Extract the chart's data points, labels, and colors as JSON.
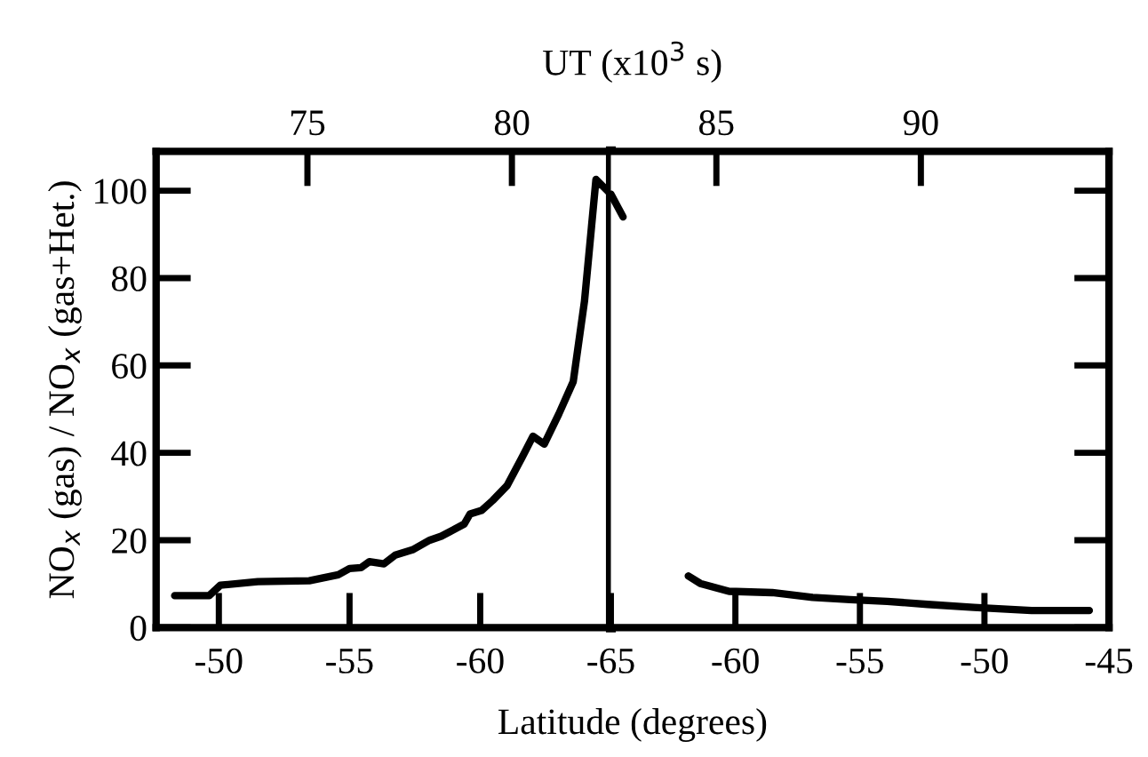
{
  "chart_data": [
    {
      "type": "line",
      "xlabel": "Latitude (degrees)",
      "ylabel": "NO$_{x}$ (gas) / NO$_{x}$ (gas+Het.)",
      "x2label": "UT (x10$^{3}$ s)",
      "series": [
        {
          "color": "#000000",
          "x": [
            -48.31,
            -49.63,
            -50.06,
            -51.49,
            -53.46,
            -54.57,
            -55.0,
            -55.44,
            -55.76,
            -56.32,
            -56.75,
            -57.41,
            -58.07,
            -58.51,
            -59.39,
            -59.61,
            -60.05,
            -60.48,
            -61.03,
            -61.58,
            -62.02,
            -62.45,
            -63.01,
            -63.56,
            -63.99,
            -64.43,
            -65.0
          ],
          "values": [
            7.3,
            7.3,
            9.7,
            10.5,
            10.7,
            12.1,
            13.5,
            13.7,
            15.1,
            14.6,
            16.6,
            17.8,
            20.0,
            20.9,
            23.7,
            26.0,
            26.8,
            29.1,
            32.5,
            38.7,
            43.8,
            42.0,
            48.9,
            56.3,
            74.7,
            102.6,
            99.2
          ]
        }
      ],
      "xlim": [
        -47.6,
        -65
      ],
      "ylim": [
        0,
        109
      ],
      "xticks": [
        -50,
        -55,
        -60,
        -65
      ],
      "yticks": [
        0,
        20,
        40,
        60,
        80,
        100
      ],
      "x2lim": [
        71.3,
        82.42
      ],
      "x2ticks": [
        75,
        80
      ],
      "ref_lines": [
        {
          "axis": "x",
          "value": -65,
          "color": "#000000",
          "line_style": "solid"
        }
      ],
      "grid": false,
      "legend": false,
      "marker": "none",
      "line_style": "solid"
    },
    {
      "type": "line",
      "series": [
        {
          "color": "#000000",
          "x": [
            -65.0,
            -64.51
          ],
          "values": [
            99.2,
            94.0
          ]
        },
        {
          "color": "#000000",
          "x": [
            -61.89,
            -61.41,
            -60.26,
            -58.52,
            -56.9,
            -55.39,
            -53.9,
            -52.28,
            -50.43,
            -48.11,
            -45.79
          ],
          "values": [
            11.8,
            10.1,
            8.3,
            8.0,
            6.9,
            6.4,
            6.0,
            5.3,
            4.6,
            3.9,
            3.9
          ]
        }
      ],
      "xlim": [
        -65,
        -45
      ],
      "ylim": [
        0,
        109
      ],
      "xticks": [
        {
          "value": -65,
          "label": null
        },
        -60,
        -55,
        -50,
        -45
      ],
      "yticks": [
        0,
        20,
        40,
        60,
        80,
        100
      ],
      "x2lim": [
        82.42,
        94.6
      ],
      "x2ticks": [
        85,
        90
      ],
      "tick_labels": "x",
      "grid": false,
      "legend": false,
      "marker": "none",
      "line_style": "solid"
    }
  ]
}
